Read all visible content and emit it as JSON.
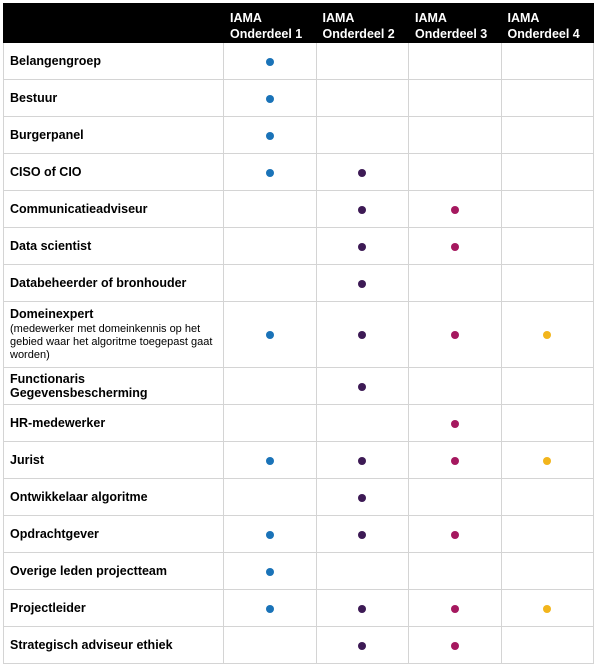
{
  "colors": {
    "onderdeel_1": "#1a73b8",
    "onderdeel_2": "#3d1a55",
    "onderdeel_3": "#a5185f",
    "onderdeel_4": "#f2b51c"
  },
  "headers": [
    {
      "line1": "IAMA",
      "line2": "Onderdeel 1"
    },
    {
      "line1": "IAMA",
      "line2": "Onderdeel 2"
    },
    {
      "line1": "IAMA",
      "line2": "Onderdeel 3"
    },
    {
      "line1": "IAMA",
      "line2": "Onderdeel 4"
    }
  ],
  "rows": [
    {
      "label": "Belangengroep",
      "sub": "",
      "marks": [
        true,
        false,
        false,
        false
      ]
    },
    {
      "label": "Bestuur",
      "sub": "",
      "marks": [
        true,
        false,
        false,
        false
      ]
    },
    {
      "label": "Burgerpanel",
      "sub": "",
      "marks": [
        true,
        false,
        false,
        false
      ]
    },
    {
      "label": "CISO of CIO",
      "sub": "",
      "marks": [
        true,
        true,
        false,
        false
      ]
    },
    {
      "label": "Communicatieadviseur",
      "sub": "",
      "marks": [
        false,
        true,
        true,
        false
      ]
    },
    {
      "label": "Data scientist",
      "sub": "",
      "marks": [
        false,
        true,
        true,
        false
      ]
    },
    {
      "label": "Databeheerder of bronhouder",
      "sub": "",
      "marks": [
        false,
        true,
        false,
        false
      ]
    },
    {
      "label": "Domeinexpert",
      "sub": "(medewerker met domeinkennis op het gebied waar het algoritme toegepast gaat worden)",
      "marks": [
        true,
        true,
        true,
        true
      ]
    },
    {
      "label": "Functionaris Gegevensbescherming",
      "sub": "",
      "marks": [
        false,
        true,
        false,
        false
      ]
    },
    {
      "label": "HR-medewerker",
      "sub": "",
      "marks": [
        false,
        false,
        true,
        false
      ]
    },
    {
      "label": "Jurist",
      "sub": "",
      "marks": [
        true,
        true,
        true,
        true
      ]
    },
    {
      "label": "Ontwikkelaar algoritme",
      "sub": "",
      "marks": [
        false,
        true,
        false,
        false
      ]
    },
    {
      "label": "Opdrachtgever",
      "sub": "",
      "marks": [
        true,
        true,
        true,
        false
      ]
    },
    {
      "label": "Overige leden projectteam",
      "sub": "",
      "marks": [
        true,
        false,
        false,
        false
      ]
    },
    {
      "label": "Projectleider",
      "sub": "",
      "marks": [
        true,
        true,
        true,
        true
      ]
    },
    {
      "label": "Strategisch adviseur ethiek",
      "sub": "",
      "marks": [
        false,
        true,
        true,
        false
      ]
    }
  ]
}
